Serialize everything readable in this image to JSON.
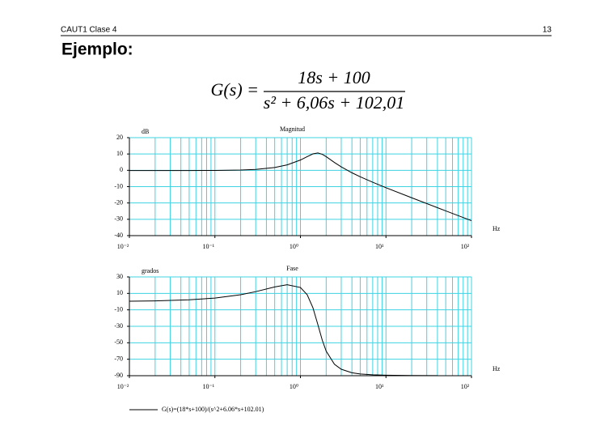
{
  "header": {
    "left": "CAUT1 Clase 4",
    "right": "13"
  },
  "title": "Ejemplo:",
  "formula": {
    "lhs": "G(s) =",
    "numerator": "18s + 100",
    "denominator": "s² + 6,06s + 102,01"
  },
  "chart_data": [
    {
      "type": "line",
      "title": "Magnitud",
      "ylabel": "dB",
      "xlabel": "Hz",
      "xscale": "log",
      "grid": true,
      "grid_color": "#3fd3e3",
      "x": [
        0.01,
        0.02,
        0.05,
        0.1,
        0.2,
        0.3,
        0.5,
        0.7,
        1,
        1.2,
        1.4,
        1.6,
        1.8,
        2,
        2.5,
        3,
        4,
        5,
        7,
        10,
        20,
        40,
        50,
        100
      ],
      "series": [
        {
          "color": "#000000",
          "values": [
            -0.17,
            -0.17,
            -0.15,
            -0.09,
            0.15,
            0.55,
            1.74,
            3.33,
            6.29,
            8.38,
            10.07,
            10.61,
            9.81,
            8.36,
            4.77,
            2.1,
            -1.51,
            -3.95,
            -7.31,
            -10.64,
            -16.82,
            -22.89,
            -24.84,
            -30.86
          ]
        }
      ],
      "xlim": [
        0.01,
        100
      ],
      "xticks": [
        {
          "value": 0.01,
          "label": "10⁻²"
        },
        {
          "value": 0.1,
          "label": "10⁻¹"
        },
        {
          "value": 1,
          "label": "10⁰"
        },
        {
          "value": 10,
          "label": "10¹"
        },
        {
          "value": 100,
          "label": "10²"
        }
      ],
      "ylim": [
        -40,
        20
      ],
      "yticks": [
        -40,
        -30,
        -20,
        -10,
        0,
        10,
        20
      ]
    },
    {
      "type": "line",
      "title": "Fase",
      "ylabel": "grados",
      "xlabel": "Hz",
      "xscale": "log",
      "grid": true,
      "grid_color": "#3fd3e3",
      "x": [
        0.01,
        0.02,
        0.05,
        0.1,
        0.2,
        0.3,
        0.5,
        0.7,
        1,
        1.2,
        1.4,
        1.6,
        1.8,
        2,
        2.5,
        3,
        4,
        5,
        7,
        10,
        20,
        40
      ],
      "series": [
        {
          "name": "G(s)=(18*s+100)/(s^2+6.06*s+102.01)",
          "color": "#000000",
          "values": [
            0.44,
            0.87,
            2.17,
            4.3,
            8.41,
            12.12,
            17.81,
            20.5,
            17.18,
            8.29,
            -7.48,
            -28.04,
            -46.86,
            -60.13,
            -76.14,
            -82.15,
            -86.43,
            -87.89,
            -88.93,
            -89.4,
            -89.75,
            -89.89
          ]
        }
      ],
      "xlim": [
        0.01,
        100
      ],
      "xticks": [
        {
          "value": 0.01,
          "label": "10⁻²"
        },
        {
          "value": 0.1,
          "label": "10⁻¹"
        },
        {
          "value": 1,
          "label": "10⁰"
        },
        {
          "value": 10,
          "label": "10¹"
        },
        {
          "value": 100,
          "label": "10²"
        }
      ],
      "ylim": [
        -90,
        30
      ],
      "yticks": [
        -90,
        -70,
        -50,
        -30,
        -10,
        10,
        30
      ]
    }
  ]
}
